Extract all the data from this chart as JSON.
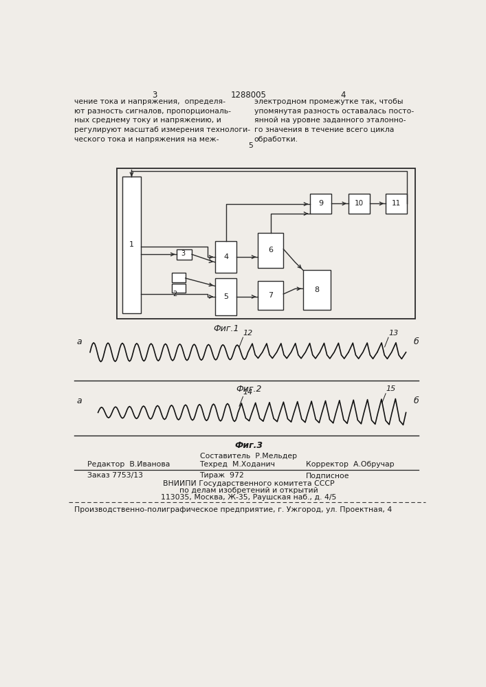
{
  "bg_color": "#f0ede8",
  "page_width": 7.07,
  "page_height": 10.0,
  "header_num_left": "3",
  "header_patent": "1288005",
  "header_num_right": "4",
  "header_text_left": "чение тока и напряжения,  определя-\nют разность сигналов, пропорциональ-\nных среднему току и напряжению, и\nрегулируют масштаб измерения технологи-\nческого тока и напряжения на меж-",
  "header_text_right": "электродном промежутке так, чтобы\nупомянутая разность оставалась посто-\nянной на уровне заданного эталонно-\nго значения в течение всего цикла\nобработки.",
  "header_line_num": "5",
  "fig1_label": "Фиг.1",
  "fig2_label": "Фиг.2",
  "fig3_label": "Фиг.3",
  "label_a_fig2": "а",
  "label_b_fig2": "б",
  "label_a_fig3": "а",
  "label_b_fig3": "б",
  "label_12": "12",
  "label_13": "13",
  "label_14": "14",
  "label_15": "15",
  "footer_line1": "Составитель  Р.Мельдер",
  "footer_line2_left": "Редактор  В.Иванова",
  "footer_line2_mid": "Техред  М.Ходанич",
  "footer_line2_right": "Корректор  А.Обручар",
  "footer_line3_left": "Заказ 7753/13",
  "footer_line3_mid": "Тираж  972",
  "footer_line3_right": "Подписное",
  "footer_line4": "ВНИИПИ Государственного комитета СССР",
  "footer_line5": "по делам изобретений и открытий",
  "footer_line6": "113035, Москва, Ж-35, Раушская наб., д. 4/5",
  "footer_last": "Производственно-полиграфическое предприятие, г. Ужгород, ул. Проектная, 4"
}
